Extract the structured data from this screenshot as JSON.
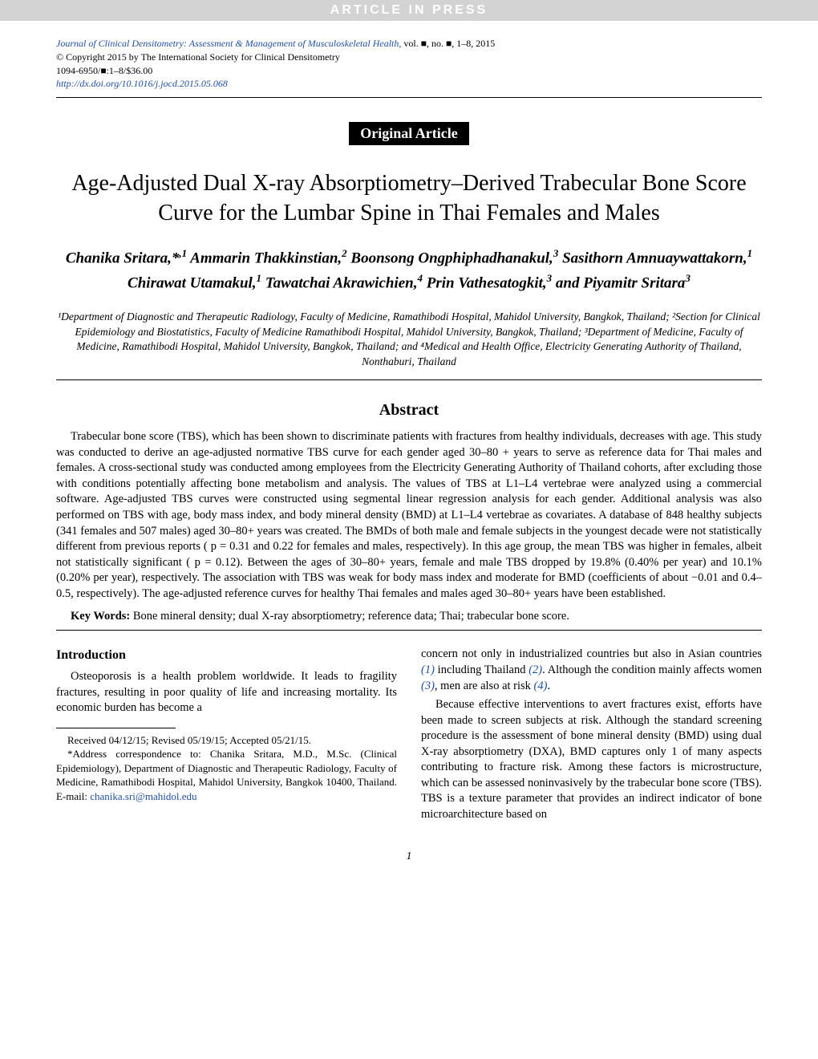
{
  "header_bar": "ARTICLE IN PRESS",
  "journal": {
    "line1_italic": "Journal of Clinical Densitometry: Assessment & Management of Musculoskeletal Health,",
    "line1_tail": " vol. ■, no. ■, 1–8, 2015",
    "line2": "© Copyright 2015 by The International Society for Clinical Densitometry",
    "line3": "1094-6950/■:1–8/$36.00",
    "doi": "http://dx.doi.org/10.1016/j.jocd.2015.05.068"
  },
  "article_type": "Original Article",
  "title": "Age-Adjusted Dual X-ray Absorptiometry–Derived Trabecular Bone Score Curve for the Lumbar Spine in Thai Females and Males",
  "authors_html": "Chanika Sritara,*,¹ Ammarin Thakkinstian,² Boonsong Ongphiphadhanakul,³ Sasithorn Amnuaywattakorn,¹ Chirawat Utamakul,¹ Tawatchai Akrawichien,⁴ Prin Vathesatogkit,³ and Piyamitr Sritara³",
  "affiliations": "¹Department of Diagnostic and Therapeutic Radiology, Faculty of Medicine, Ramathibodi Hospital, Mahidol University, Bangkok, Thailand; ²Section for Clinical Epidemiology and Biostatistics, Faculty of Medicine Ramathibodi Hospital, Mahidol University, Bangkok, Thailand; ³Department of Medicine, Faculty of Medicine, Ramathibodi Hospital, Mahidol University, Bangkok, Thailand; and ⁴Medical and Health Office, Electricity Generating Authority of Thailand, Nonthaburi, Thailand",
  "abstract": {
    "heading": "Abstract",
    "body": "Trabecular bone score (TBS), which has been shown to discriminate patients with fractures from healthy individuals, decreases with age. This study was conducted to derive an age-adjusted normative TBS curve for each gender aged 30–80 + years to serve as reference data for Thai males and females. A cross-sectional study was conducted among employees from the Electricity Generating Authority of Thailand cohorts, after excluding those with conditions potentially affecting bone metabolism and analysis. The values of TBS at L1–L4 vertebrae were analyzed using a commercial software. Age-adjusted TBS curves were constructed using segmental linear regression analysis for each gender. Additional analysis was also performed on TBS with age, body mass index, and body mineral density (BMD) at L1–L4 vertebrae as covariates. A database of 848 healthy subjects (341 females and 507 males) aged 30–80+ years was created. The BMDs of both male and female subjects in the youngest decade were not statistically different from previous reports ( p = 0.31 and 0.22 for females and males, respectively). In this age group, the mean TBS was higher in females, albeit not statistically significant ( p = 0.12). Between the ages of 30–80+ years, female and male TBS dropped by 19.8% (0.40% per year) and 10.1% (0.20% per year), respectively. The association with TBS was weak for body mass index and moderate for BMD (coefficients of about −0.01 and 0.4–0.5, respectively). The age-adjusted reference curves for healthy Thai females and males aged 30–80+ years have been established."
  },
  "keywords": {
    "label": "Key Words:",
    "text": " Bone mineral density; dual X-ray absorptiometry; reference data; Thai; trabecular bone score."
  },
  "introduction": {
    "heading": "Introduction",
    "p1": "Osteoporosis is a health problem worldwide. It leads to fragility fractures, resulting in poor quality of life and increasing mortality. Its economic burden has become a",
    "col2_p1_a": "concern not only in industrialized countries but also in Asian countries ",
    "ref1": "(1)",
    "col2_p1_b": " including Thailand ",
    "ref2": "(2)",
    "col2_p1_c": ". Although the condition mainly affects women ",
    "ref3": "(3)",
    "col2_p1_d": ", men are also at risk ",
    "ref4": "(4)",
    "col2_p1_e": ".",
    "col2_p2": "Because effective interventions to avert fractures exist, efforts have been made to screen subjects at risk. Although the standard screening procedure is the assessment of bone mineral density (BMD) using dual X-ray absorptiometry (DXA), BMD captures only 1 of many aspects contributing to fracture risk. Among these factors is microstructure, which can be assessed noninvasively by the trabecular bone score (TBS). TBS is a texture parameter that provides an indirect indicator of bone microarchitecture based on"
  },
  "footnote": {
    "received": "Received 04/12/15; Revised 05/19/15; Accepted 05/21/15.",
    "corr": "*Address correspondence to: Chanika Sritara, M.D., M.Sc. (Clinical Epidemiology), Department of Diagnostic and Therapeutic Radiology, Faculty of Medicine, Ramathibodi Hospital, Mahidol University, Bangkok 10400, Thailand. E-mail: ",
    "email": "chanika.sri@mahidol.edu"
  },
  "page_number": "1",
  "colors": {
    "link": "#2050a0",
    "header_bg": "#d3d3d3",
    "text": "#000000"
  }
}
